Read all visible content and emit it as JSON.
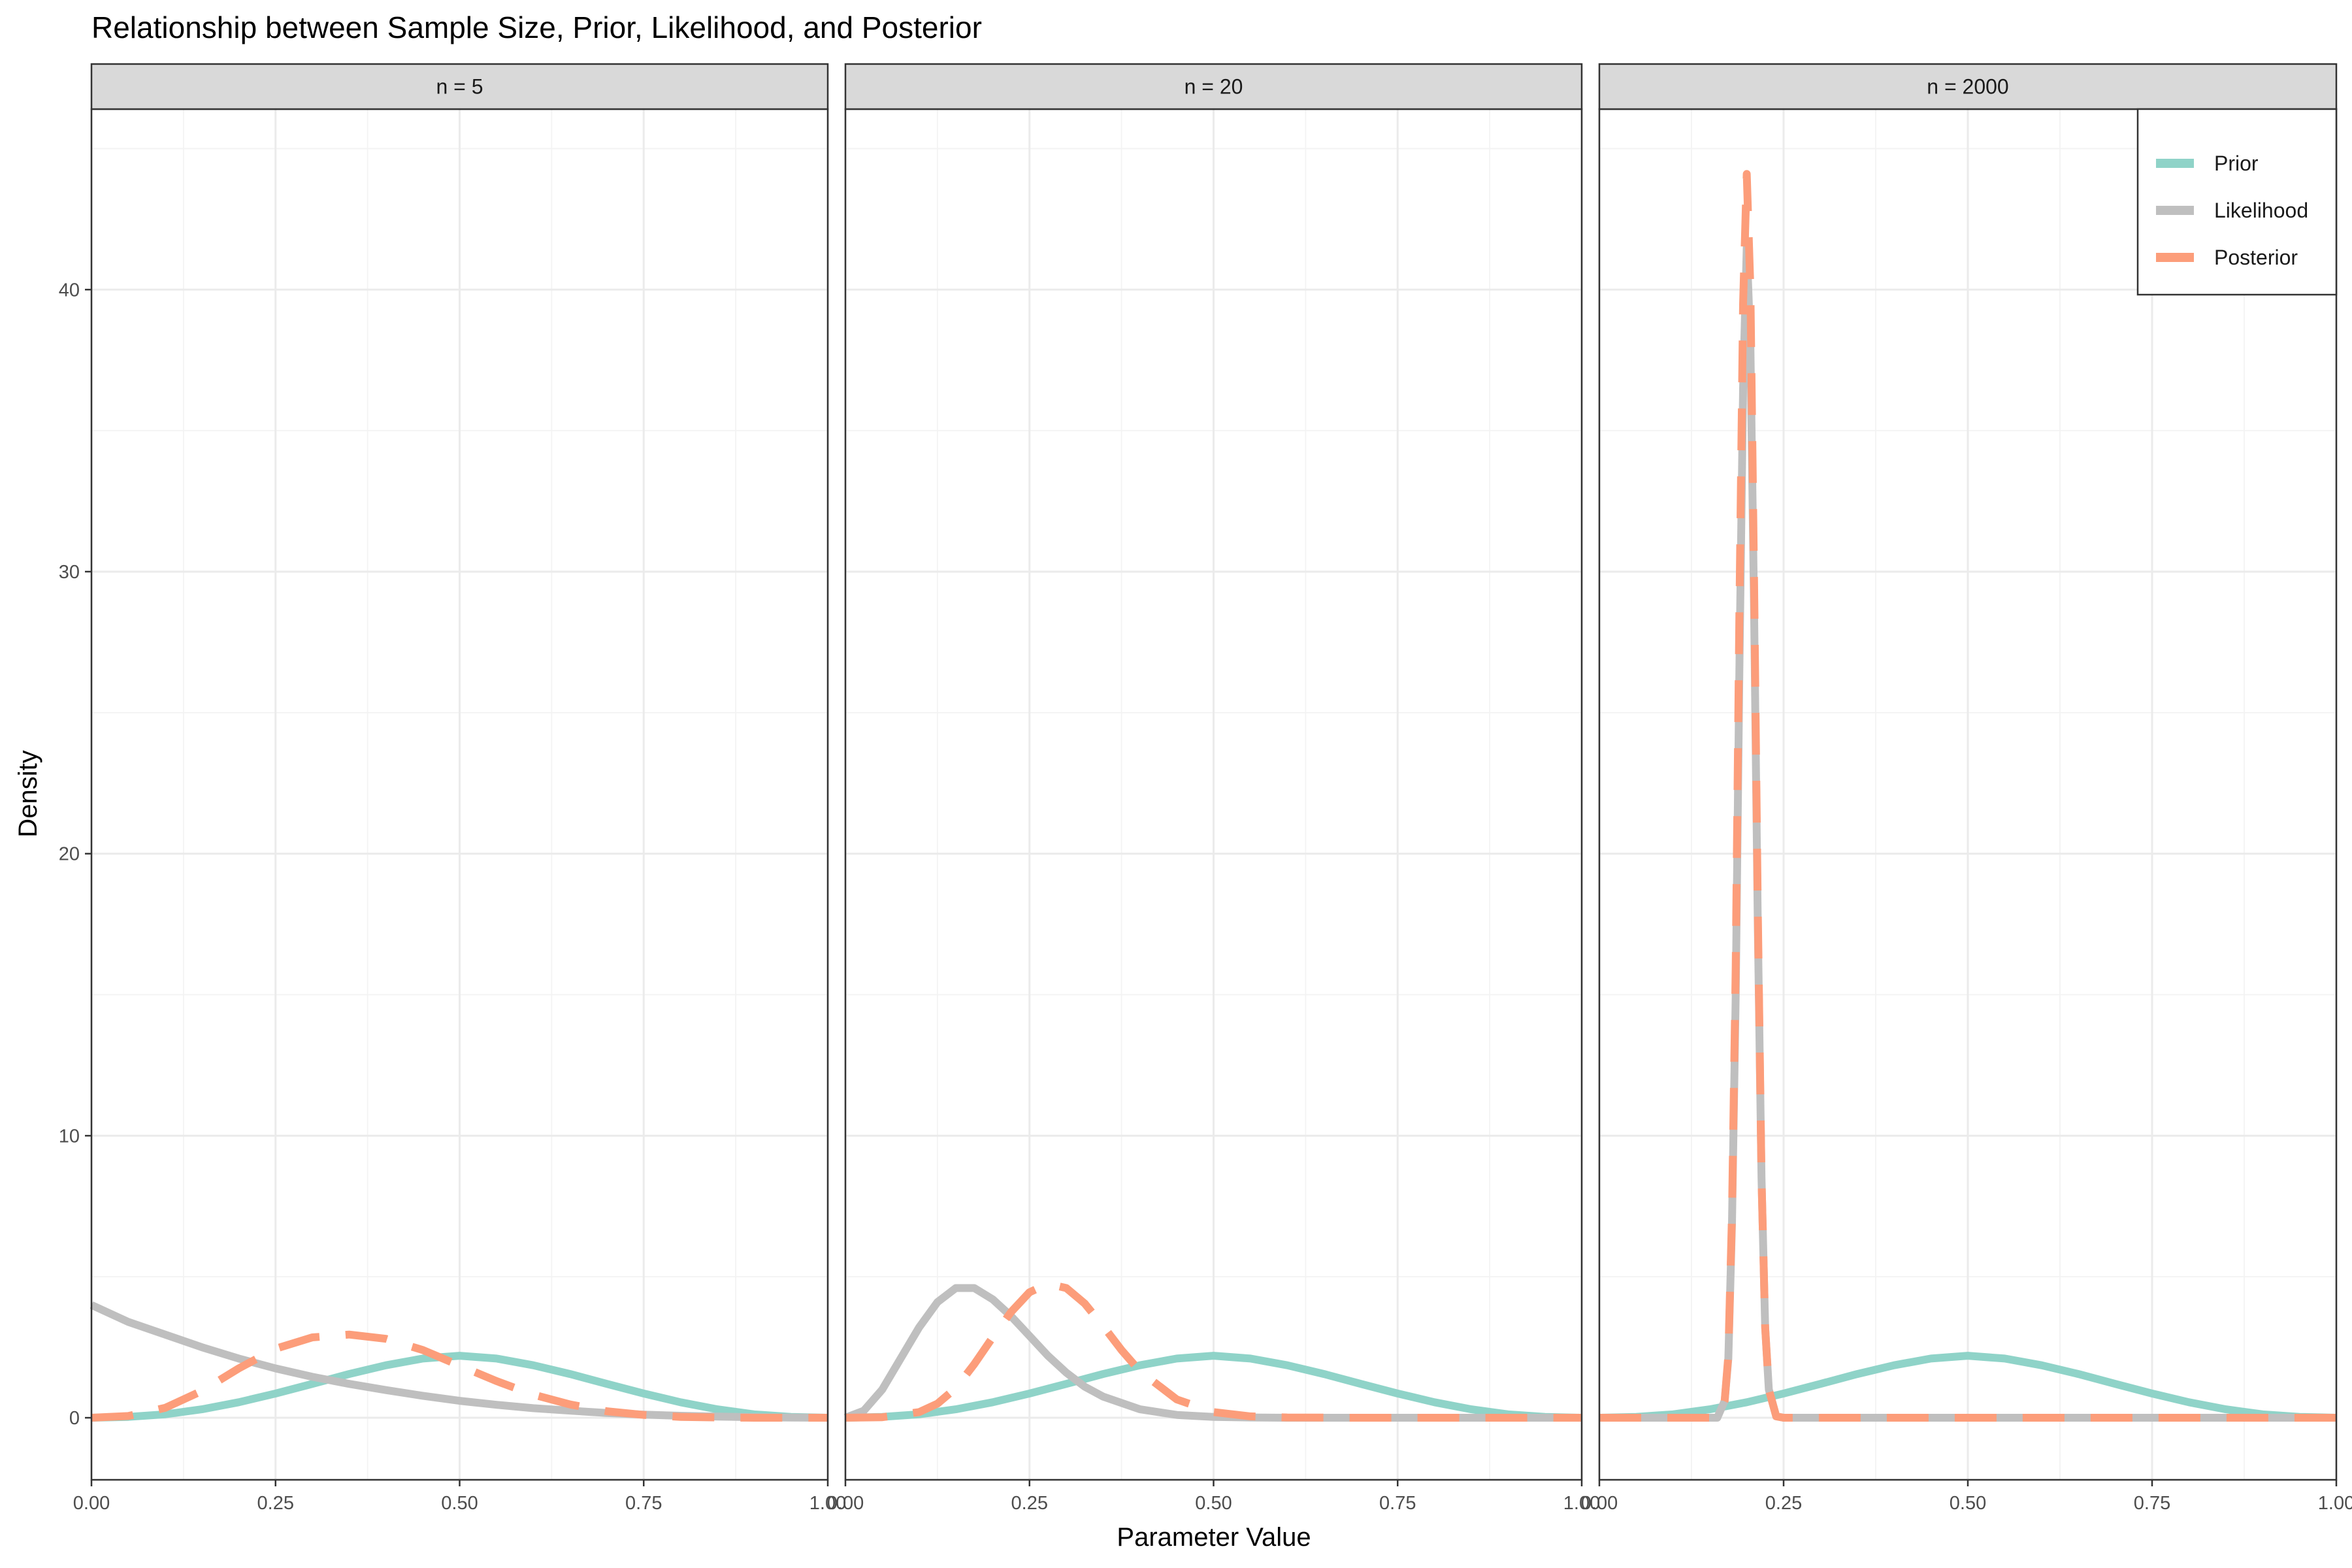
{
  "chart_data": {
    "type": "line",
    "title": "Relationship between Sample Size, Prior, Likelihood, and Posterior",
    "xlabel": "Parameter Value",
    "ylabel": "Density",
    "xlim": [
      0,
      1
    ],
    "ylim": [
      -2.2,
      46.4
    ],
    "x_ticks": [
      "0.00",
      "0.25",
      "0.50",
      "0.75",
      "1.00"
    ],
    "y_ticks": [
      "0",
      "10",
      "20",
      "30",
      "40"
    ],
    "grid": true,
    "legend_position": "top-right",
    "series_styles": [
      {
        "name": "Prior",
        "color": "#8fd3c8",
        "dash": "solid"
      },
      {
        "name": "Likelihood",
        "color": "#bfbfbf",
        "dash": "solid"
      },
      {
        "name": "Posterior",
        "color": "#fc9d7a",
        "dash": "dashed"
      }
    ],
    "panels": [
      {
        "label": "n = 5",
        "series": [
          {
            "name": "Prior",
            "x": [
              0,
              0.05,
              0.1,
              0.15,
              0.2,
              0.25,
              0.3,
              0.35,
              0.4,
              0.45,
              0.5,
              0.55,
              0.6,
              0.65,
              0.7,
              0.75,
              0.8,
              0.85,
              0.9,
              0.95,
              1.0
            ],
            "y": [
              0,
              0.03,
              0.12,
              0.3,
              0.55,
              0.86,
              1.2,
              1.55,
              1.86,
              2.1,
              2.2,
              2.1,
              1.86,
              1.55,
              1.2,
              0.86,
              0.55,
              0.3,
              0.12,
              0.03,
              0
            ]
          },
          {
            "name": "Likelihood",
            "x": [
              0,
              0.05,
              0.1,
              0.15,
              0.2,
              0.25,
              0.3,
              0.35,
              0.4,
              0.45,
              0.5,
              0.55,
              0.6,
              0.65,
              0.7,
              0.75,
              0.8,
              0.85,
              0.9,
              0.95,
              1.0
            ],
            "y": [
              4.0,
              3.4,
              2.95,
              2.5,
              2.1,
              1.75,
              1.45,
              1.2,
              0.98,
              0.78,
              0.6,
              0.46,
              0.34,
              0.25,
              0.17,
              0.11,
              0.07,
              0.04,
              0.02,
              0.005,
              0
            ]
          },
          {
            "name": "Posterior",
            "x": [
              0,
              0.05,
              0.1,
              0.15,
              0.2,
              0.25,
              0.3,
              0.35,
              0.4,
              0.45,
              0.5,
              0.55,
              0.6,
              0.65,
              0.7,
              0.75,
              0.8,
              0.85,
              0.9,
              0.95,
              1.0
            ],
            "y": [
              0,
              0.06,
              0.35,
              0.95,
              1.75,
              2.45,
              2.85,
              2.95,
              2.8,
              2.4,
              1.85,
              1.3,
              0.82,
              0.47,
              0.23,
              0.1,
              0.03,
              0.01,
              0,
              0,
              0
            ]
          }
        ]
      },
      {
        "label": "n = 20",
        "series": [
          {
            "name": "Prior",
            "x": [
              0,
              0.05,
              0.1,
              0.15,
              0.2,
              0.25,
              0.3,
              0.35,
              0.4,
              0.45,
              0.5,
              0.55,
              0.6,
              0.65,
              0.7,
              0.75,
              0.8,
              0.85,
              0.9,
              0.95,
              1.0
            ],
            "y": [
              0,
              0.03,
              0.12,
              0.3,
              0.55,
              0.86,
              1.2,
              1.55,
              1.86,
              2.1,
              2.2,
              2.1,
              1.86,
              1.55,
              1.2,
              0.86,
              0.55,
              0.3,
              0.12,
              0.03,
              0
            ]
          },
          {
            "name": "Likelihood",
            "x": [
              0,
              0.025,
              0.05,
              0.075,
              0.1,
              0.125,
              0.15,
              0.175,
              0.2,
              0.225,
              0.25,
              0.275,
              0.3,
              0.325,
              0.35,
              0.4,
              0.45,
              0.5,
              0.55,
              0.6,
              0.7,
              0.8,
              0.9,
              1.0
            ],
            "y": [
              0,
              0.25,
              1.0,
              2.1,
              3.2,
              4.1,
              4.6,
              4.6,
              4.2,
              3.6,
              2.9,
              2.2,
              1.6,
              1.1,
              0.75,
              0.3,
              0.1,
              0.03,
              0.01,
              0,
              0,
              0,
              0,
              0
            ]
          },
          {
            "name": "Posterior",
            "x": [
              0,
              0.05,
              0.1,
              0.125,
              0.15,
              0.175,
              0.2,
              0.225,
              0.25,
              0.275,
              0.3,
              0.325,
              0.35,
              0.375,
              0.4,
              0.45,
              0.5,
              0.55,
              0.6,
              0.7,
              0.8,
              0.9,
              1.0
            ],
            "y": [
              0,
              0.02,
              0.2,
              0.5,
              1.05,
              1.9,
              2.85,
              3.75,
              4.45,
              4.75,
              4.6,
              4.05,
              3.25,
              2.4,
              1.65,
              0.65,
              0.2,
              0.05,
              0.01,
              0,
              0,
              0,
              0
            ]
          }
        ]
      },
      {
        "label": "n = 2000",
        "series": [
          {
            "name": "Prior",
            "x": [
              0,
              0.05,
              0.1,
              0.15,
              0.2,
              0.25,
              0.3,
              0.35,
              0.4,
              0.45,
              0.5,
              0.55,
              0.6,
              0.65,
              0.7,
              0.75,
              0.8,
              0.85,
              0.9,
              0.95,
              1.0
            ],
            "y": [
              0,
              0.03,
              0.12,
              0.3,
              0.55,
              0.86,
              1.2,
              1.55,
              1.86,
              2.1,
              2.2,
              2.1,
              1.86,
              1.55,
              1.2,
              0.86,
              0.55,
              0.3,
              0.12,
              0.03,
              0
            ]
          },
          {
            "name": "Likelihood",
            "x": [
              0,
              0.16,
              0.17,
              0.175,
              0.18,
              0.185,
              0.19,
              0.195,
              0.2,
              0.205,
              0.21,
              0.215,
              0.22,
              0.225,
              0.23,
              0.24,
              0.25,
              0.5,
              1.0
            ],
            "y": [
              0,
              0,
              0.6,
              2.1,
              6.9,
              15.0,
              26.5,
              36.5,
              41.5,
              38.0,
              28.5,
              17.5,
              8.5,
              3.2,
              1.0,
              0.05,
              0,
              0,
              0
            ]
          },
          {
            "name": "Posterior",
            "x": [
              0,
              0.16,
              0.17,
              0.175,
              0.18,
              0.185,
              0.19,
              0.195,
              0.2,
              0.205,
              0.21,
              0.215,
              0.22,
              0.225,
              0.23,
              0.24,
              0.25,
              0.5,
              1.0
            ],
            "y": [
              0,
              0,
              0.6,
              2.2,
              7.2,
              16.0,
              28.5,
              39.5,
              44.1,
              40.0,
              29.5,
              18.0,
              8.5,
              3.2,
              1.0,
              0.05,
              0,
              0,
              0
            ]
          }
        ]
      }
    ]
  }
}
